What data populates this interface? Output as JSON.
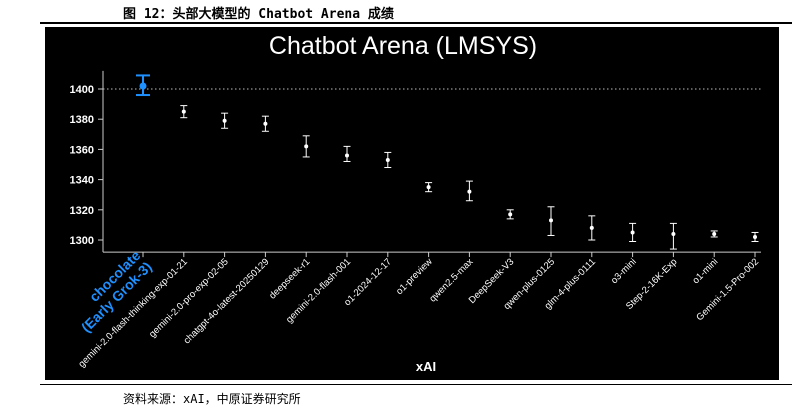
{
  "figure_caption": "图 12：头部大模型的 Chatbot Arena 成绩",
  "source_note": "资料来源：xAI，中原证券研究所",
  "colors": {
    "background": "#000000",
    "point": "#ffffff",
    "highlight": "#1e90ff",
    "axis": "#cccccc"
  },
  "chart_data": {
    "type": "scatter",
    "title": "Chatbot Arena (LMSYS)",
    "xlabel": "xAI",
    "ylabel": "",
    "ylim": [
      1292,
      1412
    ],
    "yticks": [
      1300,
      1320,
      1340,
      1360,
      1380,
      1400
    ],
    "reference_line": 1400,
    "grid": false,
    "categories": [
      "chocolate\n(Early Grok-3)",
      "gemini-2.0-flash-thinking-exp-01-21",
      "gemini-2.0-pro-exp-02-05",
      "chatgpt-4o-latest-20250129",
      "deepseek-r1",
      "gemini-2.0-flash-001",
      "o1-2024-12-17",
      "o1-preview",
      "qwen2.5-max",
      "DeepSeek-V3",
      "qwen-plus-0125",
      "glm-4-plus-0111",
      "o3-mini",
      "Step-2-16K-Exp",
      "o1-mini",
      "Gemini-1.5-Pro-002"
    ],
    "values": [
      1402,
      1385,
      1379,
      1377,
      1362,
      1356,
      1353,
      1335,
      1332,
      1317,
      1313,
      1308,
      1305,
      1304,
      1304,
      1302
    ],
    "error_low": [
      1396,
      1381,
      1374,
      1372,
      1355,
      1352,
      1348,
      1332,
      1326,
      1314,
      1303,
      1300,
      1299,
      1294,
      1302,
      1299
    ],
    "error_high": [
      1409,
      1389,
      1384,
      1382,
      1369,
      1362,
      1358,
      1338,
      1339,
      1320,
      1322,
      1316,
      1311,
      1311,
      1306,
      1305
    ],
    "highlight_index": 0
  }
}
